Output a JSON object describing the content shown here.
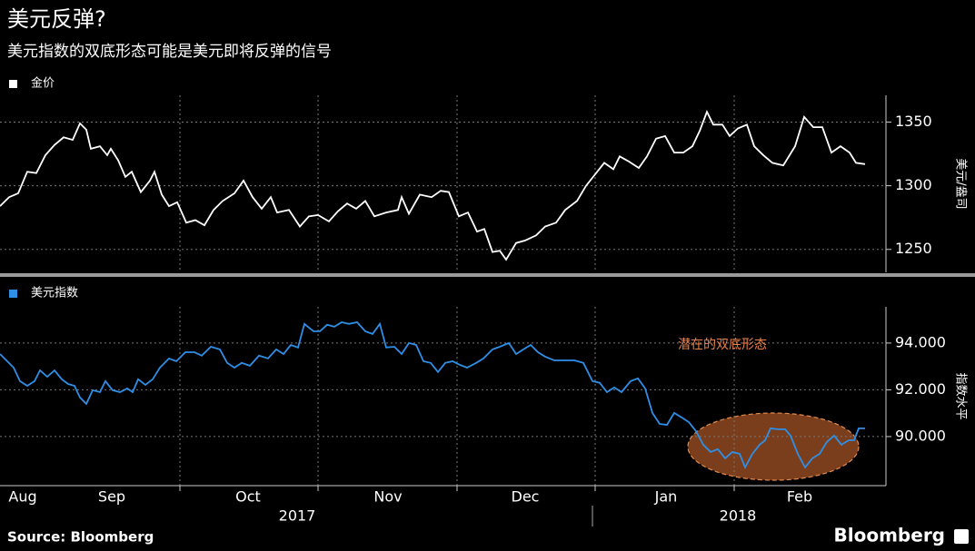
{
  "title": "美元反弹?",
  "subtitle": "美元指数的双底形态可能是美元即将反弹的信号",
  "source": "Source: Bloomberg",
  "logo": "Bloomberg",
  "chart_data": [
    {
      "type": "line",
      "y_label": "美元/盎司",
      "xlim": [
        0,
        975
      ],
      "ylim": [
        1232,
        1371
      ],
      "yticks": [
        1250,
        1300,
        1350
      ],
      "grid": true,
      "x": [
        0,
        10,
        20,
        30,
        40,
        50,
        60,
        70,
        80,
        88,
        95,
        100,
        110,
        118,
        122,
        130,
        138,
        145,
        155,
        165,
        170,
        178,
        186,
        195,
        205,
        215,
        225,
        235,
        245,
        258,
        268,
        278,
        288,
        298,
        305,
        318,
        330,
        340,
        350,
        362,
        372,
        382,
        392,
        402,
        412,
        425,
        438,
        442,
        450,
        462,
        475,
        485,
        494,
        505,
        515,
        525,
        533,
        542,
        550,
        557,
        568,
        578,
        590,
        600,
        612,
        622,
        635,
        645,
        655,
        665,
        675,
        682,
        692,
        703,
        712,
        722,
        732,
        742,
        752,
        762,
        770,
        778,
        785,
        795,
        803,
        812,
        822,
        830,
        840,
        850,
        862,
        875,
        885,
        895,
        905,
        915,
        925,
        935,
        942,
        952
      ],
      "series": [
        {
          "name": "金价",
          "color": "#ffffff",
          "values": [
            1284,
            1291,
            1294,
            1311,
            1310,
            1324,
            1332,
            1338,
            1336,
            1349,
            1344,
            1329,
            1331,
            1324,
            1329,
            1320,
            1307,
            1311,
            1295,
            1304,
            1311,
            1293,
            1284,
            1287,
            1271,
            1273,
            1269,
            1281,
            1288,
            1294,
            1304,
            1291,
            1282,
            1291,
            1279,
            1281,
            1268,
            1276,
            1277,
            1272,
            1280,
            1286,
            1282,
            1288,
            1276,
            1279,
            1281,
            1291,
            1278,
            1293,
            1291,
            1296,
            1295,
            1276,
            1279,
            1264,
            1266,
            1248,
            1249,
            1242,
            1255,
            1257,
            1261,
            1268,
            1271,
            1281,
            1288,
            1300,
            1309,
            1318,
            1313,
            1323,
            1319,
            1314,
            1323,
            1337,
            1339,
            1326,
            1326,
            1331,
            1343,
            1358,
            1348,
            1348,
            1339,
            1345,
            1348,
            1331,
            1324,
            1318,
            1316,
            1331,
            1354,
            1346,
            1346,
            1326,
            1331,
            1326,
            1318,
            1317
          ]
        }
      ]
    },
    {
      "type": "line",
      "y_label": "指数水平",
      "annotation": "潜在的双底形态",
      "xlim": [
        0,
        975
      ],
      "ylim": [
        87.9,
        95.55
      ],
      "yticks": [
        {
          "value": 90,
          "label": "90.000"
        },
        {
          "value": 92,
          "label": "92.000"
        },
        {
          "value": 94,
          "label": "94.000"
        }
      ],
      "grid": true,
      "xgrid": [
        198,
        350,
        503,
        655,
        808
      ],
      "xticks": [
        {
          "value": 25,
          "label": "Aug"
        },
        {
          "value": 123,
          "label": "Sep"
        },
        {
          "value": 273,
          "label": "Oct"
        },
        {
          "value": 427,
          "label": "Nov"
        },
        {
          "value": 578,
          "label": "Dec"
        },
        {
          "value": 733,
          "label": "Jan"
        },
        {
          "value": 880,
          "label": "Feb"
        }
      ],
      "year_labels": [
        {
          "value": 327,
          "label": "2017"
        },
        {
          "value": 812,
          "label": "2018"
        }
      ],
      "x": [
        0,
        8,
        15,
        22,
        30,
        38,
        44,
        52,
        60,
        68,
        75,
        82,
        88,
        95,
        102,
        110,
        116,
        124,
        132,
        140,
        146,
        152,
        160,
        168,
        176,
        186,
        194,
        204,
        214,
        222,
        232,
        242,
        250,
        258,
        266,
        275,
        285,
        295,
        304,
        312,
        320,
        328,
        335,
        345,
        352,
        360,
        368,
        376,
        384,
        393,
        402,
        410,
        418,
        425,
        434,
        442,
        450,
        458,
        466,
        474,
        482,
        490,
        498,
        506,
        514,
        524,
        532,
        542,
        550,
        560,
        568,
        576,
        584,
        592,
        600,
        610,
        620,
        632,
        642,
        652,
        660,
        668,
        676,
        684,
        694,
        702,
        710,
        718,
        726,
        734,
        742,
        750,
        758,
        766,
        774,
        782,
        790,
        798,
        806,
        814,
        820,
        828,
        836,
        842,
        848,
        856,
        864,
        870,
        878,
        886,
        894,
        902,
        910,
        918,
        926,
        934,
        940,
        945,
        952
      ],
      "series": [
        {
          "name": "美元指数",
          "color": "#2f8fe6",
          "values": [
            93.53,
            93.22,
            92.95,
            92.37,
            92.17,
            92.37,
            92.83,
            92.56,
            92.83,
            92.45,
            92.25,
            92.17,
            91.67,
            91.4,
            91.98,
            91.9,
            92.37,
            91.98,
            91.9,
            92.06,
            91.9,
            92.45,
            92.21,
            92.45,
            92.95,
            93.34,
            93.22,
            93.61,
            93.61,
            93.46,
            93.84,
            93.73,
            93.15,
            92.95,
            93.15,
            93.03,
            93.46,
            93.34,
            93.73,
            93.53,
            93.92,
            93.81,
            94.82,
            94.5,
            94.5,
            94.78,
            94.7,
            94.89,
            94.82,
            94.89,
            94.5,
            94.39,
            94.82,
            93.81,
            93.84,
            93.53,
            94.0,
            93.92,
            93.22,
            93.15,
            92.76,
            93.15,
            93.22,
            93.07,
            92.95,
            93.15,
            93.34,
            93.73,
            93.84,
            94.0,
            93.53,
            93.73,
            93.92,
            93.61,
            93.42,
            93.26,
            93.26,
            93.26,
            93.15,
            92.37,
            92.3,
            91.9,
            92.1,
            91.9,
            92.37,
            92.49,
            92.06,
            91.01,
            90.54,
            90.5,
            91.01,
            90.82,
            90.62,
            90.23,
            89.65,
            89.34,
            89.46,
            89.07,
            89.34,
            89.26,
            88.68,
            89.26,
            89.65,
            89.84,
            90.35,
            90.31,
            90.31,
            90.04,
            89.26,
            88.68,
            89.07,
            89.26,
            89.77,
            90.04,
            89.65,
            89.84,
            89.84,
            90.35,
            90.35
          ]
        }
      ]
    }
  ]
}
